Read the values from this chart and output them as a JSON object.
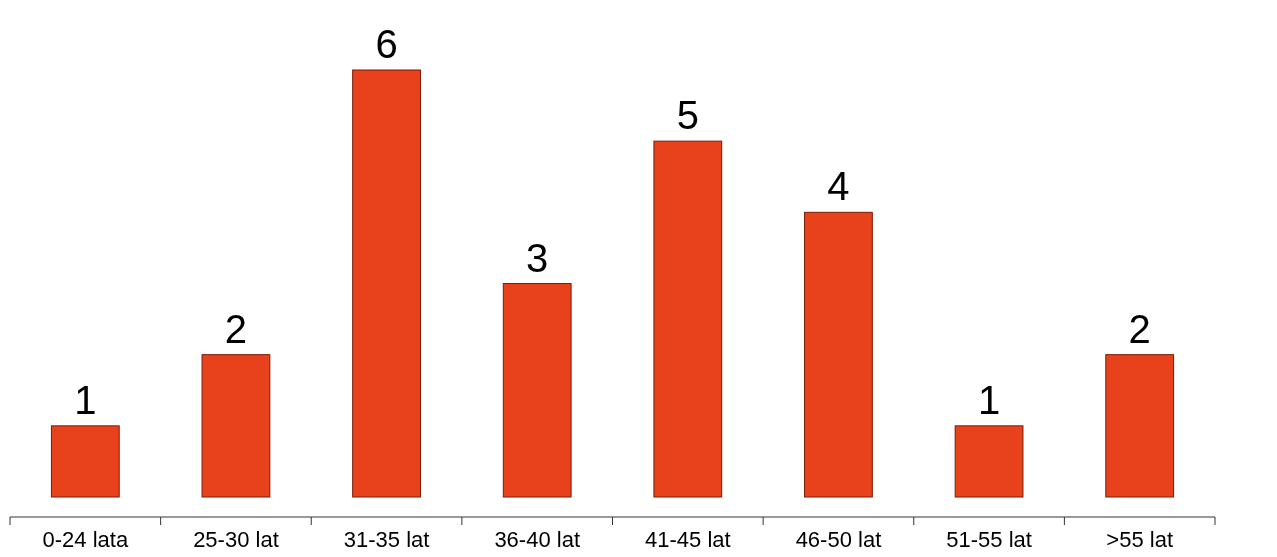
{
  "chart_data": {
    "type": "bar",
    "categories": [
      "0-24 lata",
      "25-30 lat",
      "31-35 lat",
      "36-40 lat",
      "41-45 lat",
      "46-50 lat",
      "51-55 lat",
      ">55 lat"
    ],
    "values": [
      1,
      2,
      6,
      3,
      5,
      4,
      1,
      2
    ],
    "color": "#e8421c",
    "data_labels": true
  }
}
